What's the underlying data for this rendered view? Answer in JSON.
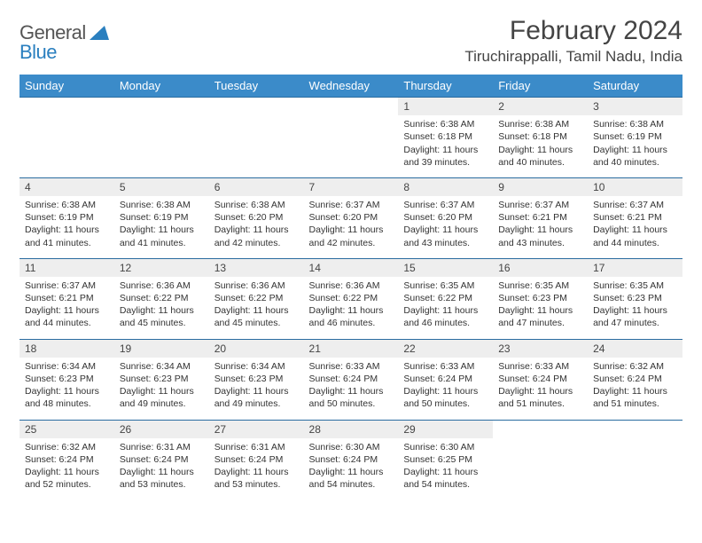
{
  "logo": {
    "part1": "General",
    "part2": "Blue",
    "accent_color": "#2a7fbf",
    "muted_color": "#555555"
  },
  "title": "February 2024",
  "location": "Tiruchirappalli, Tamil Nadu, India",
  "header_bg": "#3b8bc9",
  "header_text_color": "#ffffff",
  "daynum_bg": "#eeeeee",
  "row_border_color": "#2a6ca0",
  "text_color": "#333333",
  "weekdays": [
    "Sunday",
    "Monday",
    "Tuesday",
    "Wednesday",
    "Thursday",
    "Friday",
    "Saturday"
  ],
  "weeks": [
    [
      null,
      null,
      null,
      null,
      {
        "n": "1",
        "sr": "6:38 AM",
        "ss": "6:18 PM",
        "dl": "11 hours and 39 minutes."
      },
      {
        "n": "2",
        "sr": "6:38 AM",
        "ss": "6:18 PM",
        "dl": "11 hours and 40 minutes."
      },
      {
        "n": "3",
        "sr": "6:38 AM",
        "ss": "6:19 PM",
        "dl": "11 hours and 40 minutes."
      }
    ],
    [
      {
        "n": "4",
        "sr": "6:38 AM",
        "ss": "6:19 PM",
        "dl": "11 hours and 41 minutes."
      },
      {
        "n": "5",
        "sr": "6:38 AM",
        "ss": "6:19 PM",
        "dl": "11 hours and 41 minutes."
      },
      {
        "n": "6",
        "sr": "6:38 AM",
        "ss": "6:20 PM",
        "dl": "11 hours and 42 minutes."
      },
      {
        "n": "7",
        "sr": "6:37 AM",
        "ss": "6:20 PM",
        "dl": "11 hours and 42 minutes."
      },
      {
        "n": "8",
        "sr": "6:37 AM",
        "ss": "6:20 PM",
        "dl": "11 hours and 43 minutes."
      },
      {
        "n": "9",
        "sr": "6:37 AM",
        "ss": "6:21 PM",
        "dl": "11 hours and 43 minutes."
      },
      {
        "n": "10",
        "sr": "6:37 AM",
        "ss": "6:21 PM",
        "dl": "11 hours and 44 minutes."
      }
    ],
    [
      {
        "n": "11",
        "sr": "6:37 AM",
        "ss": "6:21 PM",
        "dl": "11 hours and 44 minutes."
      },
      {
        "n": "12",
        "sr": "6:36 AM",
        "ss": "6:22 PM",
        "dl": "11 hours and 45 minutes."
      },
      {
        "n": "13",
        "sr": "6:36 AM",
        "ss": "6:22 PM",
        "dl": "11 hours and 45 minutes."
      },
      {
        "n": "14",
        "sr": "6:36 AM",
        "ss": "6:22 PM",
        "dl": "11 hours and 46 minutes."
      },
      {
        "n": "15",
        "sr": "6:35 AM",
        "ss": "6:22 PM",
        "dl": "11 hours and 46 minutes."
      },
      {
        "n": "16",
        "sr": "6:35 AM",
        "ss": "6:23 PM",
        "dl": "11 hours and 47 minutes."
      },
      {
        "n": "17",
        "sr": "6:35 AM",
        "ss": "6:23 PM",
        "dl": "11 hours and 47 minutes."
      }
    ],
    [
      {
        "n": "18",
        "sr": "6:34 AM",
        "ss": "6:23 PM",
        "dl": "11 hours and 48 minutes."
      },
      {
        "n": "19",
        "sr": "6:34 AM",
        "ss": "6:23 PM",
        "dl": "11 hours and 49 minutes."
      },
      {
        "n": "20",
        "sr": "6:34 AM",
        "ss": "6:23 PM",
        "dl": "11 hours and 49 minutes."
      },
      {
        "n": "21",
        "sr": "6:33 AM",
        "ss": "6:24 PM",
        "dl": "11 hours and 50 minutes."
      },
      {
        "n": "22",
        "sr": "6:33 AM",
        "ss": "6:24 PM",
        "dl": "11 hours and 50 minutes."
      },
      {
        "n": "23",
        "sr": "6:33 AM",
        "ss": "6:24 PM",
        "dl": "11 hours and 51 minutes."
      },
      {
        "n": "24",
        "sr": "6:32 AM",
        "ss": "6:24 PM",
        "dl": "11 hours and 51 minutes."
      }
    ],
    [
      {
        "n": "25",
        "sr": "6:32 AM",
        "ss": "6:24 PM",
        "dl": "11 hours and 52 minutes."
      },
      {
        "n": "26",
        "sr": "6:31 AM",
        "ss": "6:24 PM",
        "dl": "11 hours and 53 minutes."
      },
      {
        "n": "27",
        "sr": "6:31 AM",
        "ss": "6:24 PM",
        "dl": "11 hours and 53 minutes."
      },
      {
        "n": "28",
        "sr": "6:30 AM",
        "ss": "6:24 PM",
        "dl": "11 hours and 54 minutes."
      },
      {
        "n": "29",
        "sr": "6:30 AM",
        "ss": "6:25 PM",
        "dl": "11 hours and 54 minutes."
      },
      null,
      null
    ]
  ],
  "labels": {
    "sunrise": "Sunrise: ",
    "sunset": "Sunset: ",
    "daylight": "Daylight: "
  }
}
